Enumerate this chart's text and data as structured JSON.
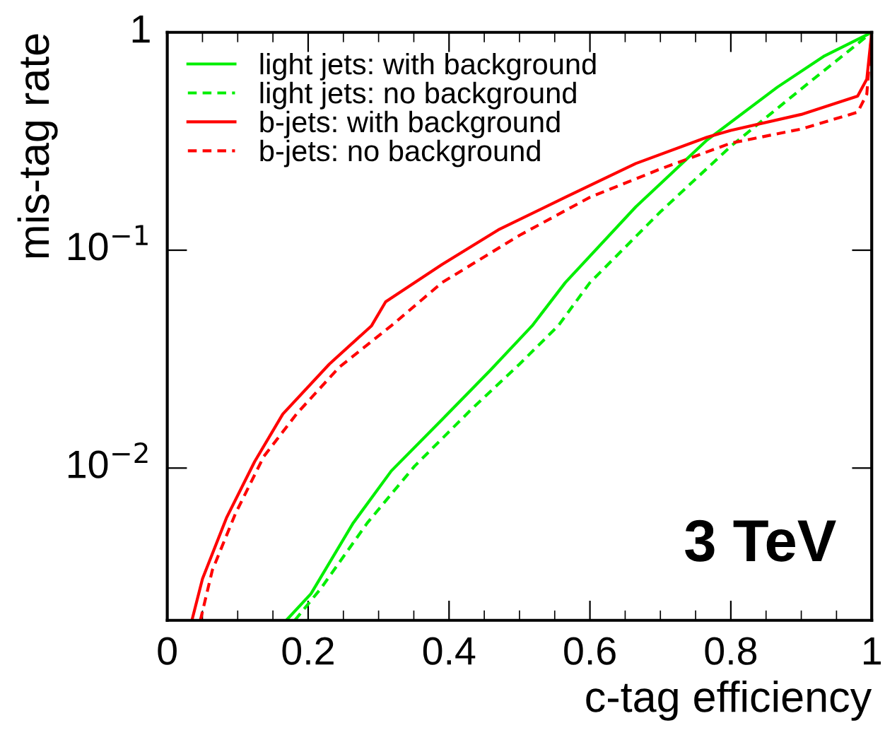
{
  "chart_data": {
    "type": "line",
    "xlabel": "c-tag efficiency",
    "ylabel": "mis-tag rate",
    "log": "y",
    "xlim": [
      0,
      1
    ],
    "ylim": [
      0.002,
      1
    ],
    "xticks": [
      0,
      0.2,
      0.4,
      0.6,
      0.8,
      1
    ],
    "yticks": [
      {
        "value": 0.01,
        "label": "10$^{−2}$"
      },
      {
        "value": 0.1,
        "label": "10$^{−1}$"
      },
      1
    ],
    "legend": "top left",
    "grid": false,
    "annotations": [
      "3 TeV"
    ],
    "series": [
      {
        "name": "light jets: with background",
        "color": "#00ee00",
        "line_style": "solid",
        "x": [
          0.169,
          0.204,
          0.264,
          0.318,
          0.391,
          0.458,
          0.518,
          0.565,
          0.665,
          0.766,
          0.866,
          0.933,
          1.0
        ],
        "values": [
          0.002,
          0.00265,
          0.0056,
          0.0097,
          0.0168,
          0.028,
          0.045,
          0.071,
          0.158,
          0.32,
          0.56,
          0.78,
          1.0
        ]
      },
      {
        "name": "light jets: no background",
        "color": "#00ee00",
        "line_style": "dashed",
        "x": [
          0.181,
          0.218,
          0.284,
          0.351,
          0.431,
          0.5,
          0.555,
          0.6,
          0.7,
          0.8,
          0.9,
          0.967,
          1.0
        ],
        "values": [
          0.002,
          0.0028,
          0.0056,
          0.0102,
          0.0185,
          0.03,
          0.045,
          0.071,
          0.15,
          0.3,
          0.55,
          0.82,
          1.0
        ]
      },
      {
        "name": "b-jets: with background",
        "color": "#ff0000",
        "line_style": "solid",
        "x": [
          0.035,
          0.05,
          0.084,
          0.124,
          0.164,
          0.23,
          0.29,
          0.31,
          0.39,
          0.47,
          0.565,
          0.665,
          0.766,
          0.8,
          0.9,
          0.98,
          0.993,
          1.0
        ],
        "values": [
          0.002,
          0.0031,
          0.0059,
          0.0107,
          0.0177,
          0.03,
          0.045,
          0.058,
          0.086,
          0.124,
          0.175,
          0.25,
          0.33,
          0.355,
          0.42,
          0.51,
          0.61,
          1.0
        ]
      },
      {
        "name": "b-jets: no background",
        "color": "#ff0000",
        "line_style": "dashed",
        "x": [
          0.047,
          0.064,
          0.097,
          0.137,
          0.184,
          0.244,
          0.318,
          0.39,
          0.5,
          0.6,
          0.7,
          0.8,
          0.9,
          0.98,
          0.993,
          1.0
        ],
        "values": [
          0.002,
          0.0034,
          0.0062,
          0.0113,
          0.0178,
          0.029,
          0.045,
          0.071,
          0.117,
          0.175,
          0.236,
          0.31,
          0.36,
          0.43,
          0.52,
          1.0
        ]
      }
    ]
  }
}
